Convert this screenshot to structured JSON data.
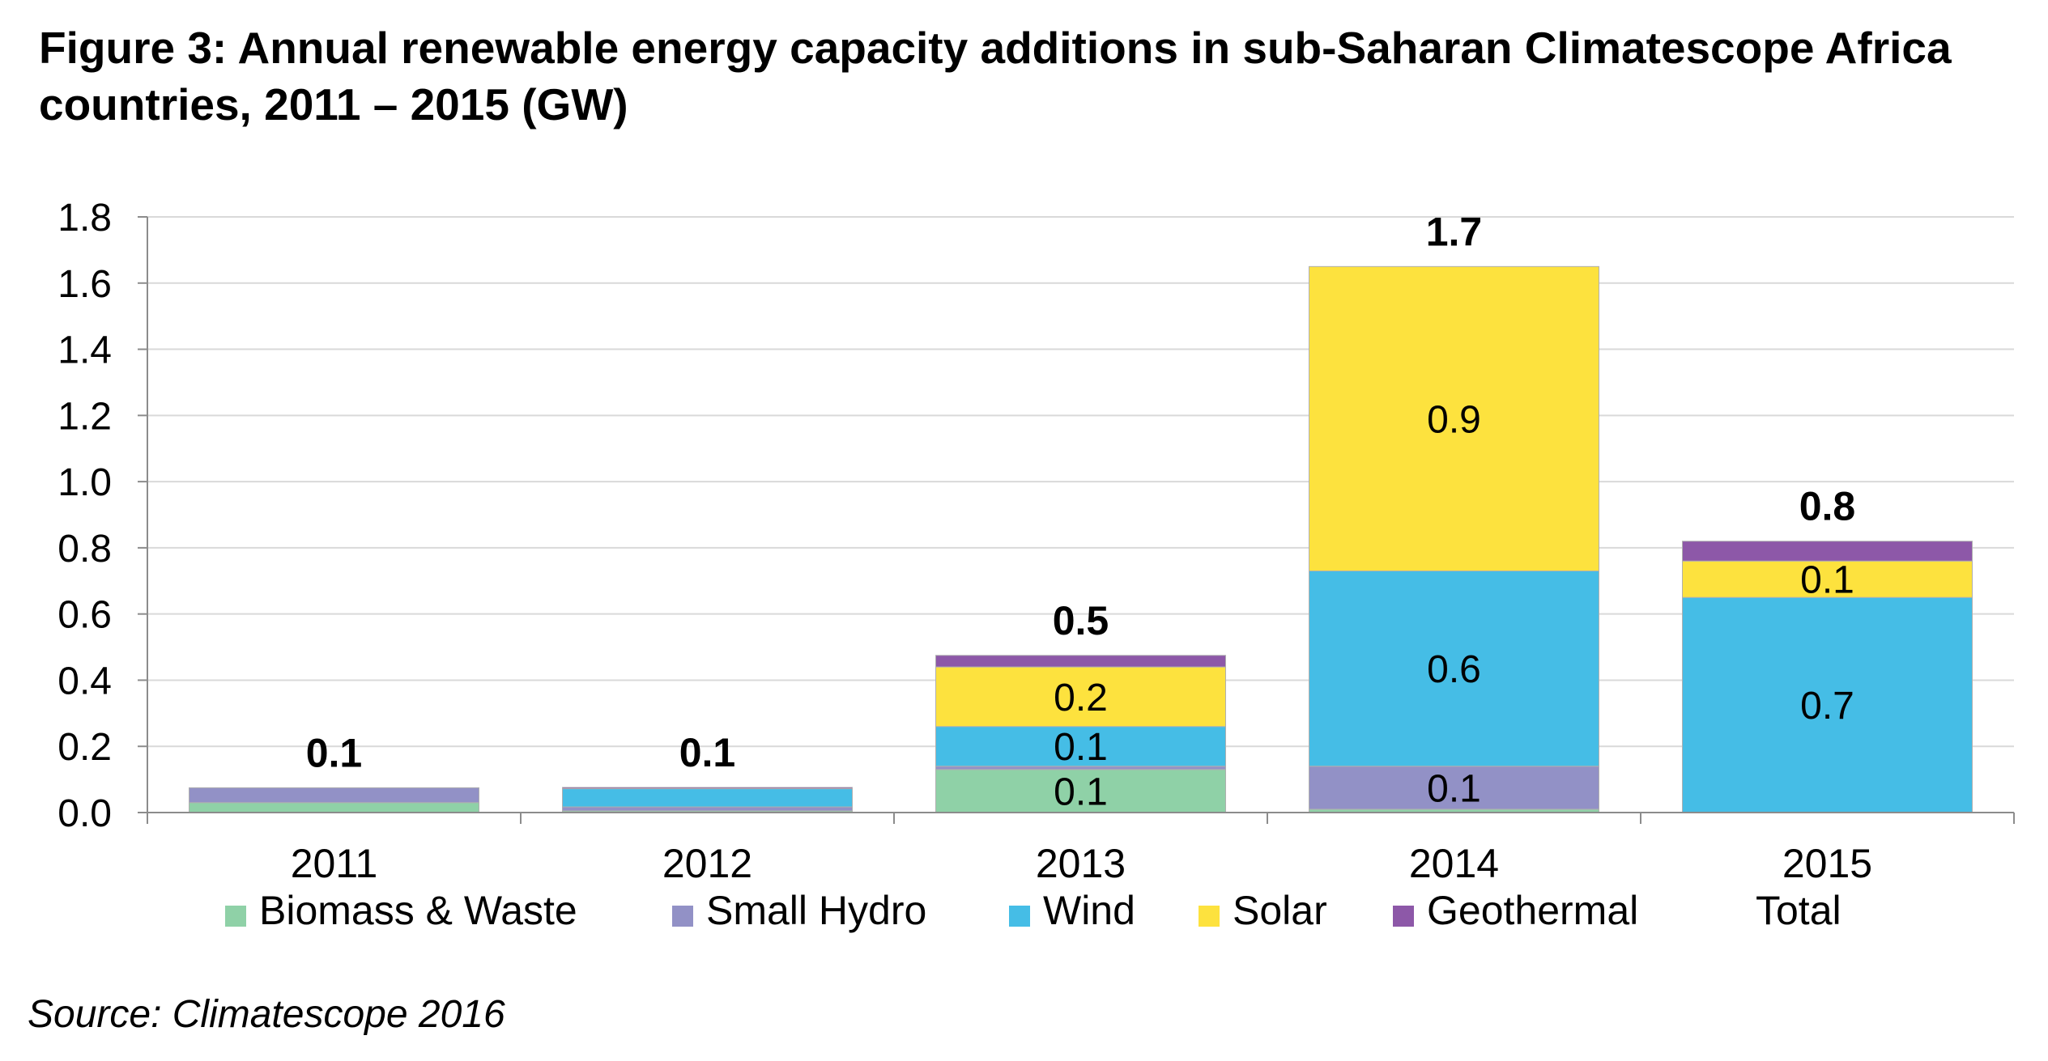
{
  "title_line1": "Figure 3: Annual renewable energy capacity additions in sub-Saharan Climatescope Africa",
  "title_line2": "countries, 2011 – 2015 (GW)",
  "source": "Source: Climatescope 2016",
  "chart_data": {
    "type": "bar",
    "stacked": true,
    "categories": [
      "2011",
      "2012",
      "2013",
      "2014",
      "2015"
    ],
    "ylim": [
      0,
      1.8
    ],
    "yticks": [
      "0.0",
      "0.2",
      "0.4",
      "0.6",
      "0.8",
      "1.0",
      "1.2",
      "1.4",
      "1.6",
      "1.8"
    ],
    "grid": true,
    "legend_position": "bottom",
    "series": [
      {
        "name": "Biomass & Waste",
        "color": "#8fd1a7",
        "values": [
          0.03,
          0.005,
          0.13,
          0.01,
          0.0
        ],
        "labels": [
          "",
          "",
          "0.1",
          "",
          ""
        ]
      },
      {
        "name": "Small Hydro",
        "color": "#9291c6",
        "values": [
          0.045,
          0.012,
          0.01,
          0.13,
          0.0
        ],
        "labels": [
          "",
          "",
          "",
          "0.1",
          ""
        ]
      },
      {
        "name": "Wind",
        "color": "#45bde6",
        "values": [
          0.0,
          0.055,
          0.12,
          0.59,
          0.65
        ],
        "labels": [
          "",
          "",
          "0.1",
          "0.6",
          "0.7"
        ]
      },
      {
        "name": "Solar",
        "color": "#fde23e",
        "values": [
          0.0,
          0.0,
          0.18,
          0.92,
          0.11
        ],
        "labels": [
          "",
          "",
          "0.2",
          "0.9",
          "0.1"
        ]
      },
      {
        "name": "Geothermal",
        "color": "#8d58a8",
        "values": [
          0.0,
          0.004,
          0.035,
          0.0,
          0.06
        ],
        "labels": [
          "",
          "",
          "",
          "",
          ""
        ]
      }
    ],
    "totals": {
      "name": "Total",
      "labels": [
        "0.1",
        "0.1",
        "0.5",
        "1.7",
        "0.8"
      ]
    }
  }
}
